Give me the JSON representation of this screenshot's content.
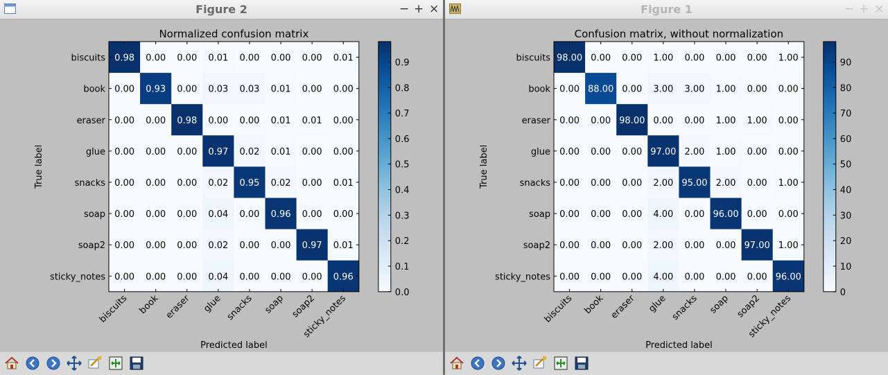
{
  "windows": [
    {
      "id": "L",
      "title": "Figure 2",
      "active": true,
      "window_icon": "window-app-icon",
      "controls": [
        "−",
        "+",
        "×"
      ],
      "toolbar": [
        "home-icon",
        "back-icon",
        "forward-icon",
        "pan-icon",
        "zoom-icon",
        "subplots-icon",
        "save-icon"
      ]
    },
    {
      "id": "R",
      "title": "Figure 1",
      "active": false,
      "window_icon": "matplotlib-icon",
      "controls": [
        "−",
        "+",
        "×"
      ],
      "toolbar": [
        "home-icon",
        "back-icon",
        "forward-icon",
        "pan-icon",
        "zoom-icon",
        "subplots-icon",
        "save-icon"
      ]
    }
  ],
  "chart_data": [
    {
      "type": "heatmap",
      "title": "Normalized confusion matrix",
      "xlabel": "Predicted label",
      "ylabel": "True label",
      "x_categories": [
        "biscuits",
        "book",
        "eraser",
        "glue",
        "snacks",
        "soap",
        "soap2",
        "sticky_notes"
      ],
      "y_categories": [
        "biscuits",
        "book",
        "eraser",
        "glue",
        "snacks",
        "soap",
        "soap2",
        "sticky_notes"
      ],
      "values": [
        [
          0.98,
          0.0,
          0.0,
          0.01,
          0.0,
          0.0,
          0.0,
          0.01
        ],
        [
          0.0,
          0.93,
          0.0,
          0.03,
          0.03,
          0.01,
          0.0,
          0.0
        ],
        [
          0.0,
          0.0,
          0.98,
          0.0,
          0.0,
          0.01,
          0.01,
          0.0
        ],
        [
          0.0,
          0.0,
          0.0,
          0.97,
          0.02,
          0.01,
          0.0,
          0.0
        ],
        [
          0.0,
          0.0,
          0.0,
          0.02,
          0.95,
          0.02,
          0.0,
          0.01
        ],
        [
          0.0,
          0.0,
          0.0,
          0.04,
          0.0,
          0.96,
          0.0,
          0.0
        ],
        [
          0.0,
          0.0,
          0.0,
          0.02,
          0.0,
          0.0,
          0.97,
          0.01
        ],
        [
          0.0,
          0.0,
          0.0,
          0.04,
          0.0,
          0.0,
          0.0,
          0.96
        ]
      ],
      "cell_format_decimals": 2,
      "colorbar": {
        "colormap": "Blues",
        "min": 0.0,
        "max": 0.98,
        "ticks": [
          "0.0",
          "0.1",
          "0.2",
          "0.3",
          "0.4",
          "0.5",
          "0.6",
          "0.7",
          "0.8",
          "0.9"
        ]
      },
      "grid": false
    },
    {
      "type": "heatmap",
      "title": "Confusion matrix, without normalization",
      "xlabel": "Predicted label",
      "ylabel": "True label",
      "x_categories": [
        "biscuits",
        "book",
        "eraser",
        "glue",
        "snacks",
        "soap",
        "soap2",
        "sticky_notes"
      ],
      "y_categories": [
        "biscuits",
        "book",
        "eraser",
        "glue",
        "snacks",
        "soap",
        "soap2",
        "sticky_notes"
      ],
      "values": [
        [
          98,
          0,
          0,
          1,
          0,
          0,
          0,
          1
        ],
        [
          0,
          88,
          0,
          3,
          3,
          1,
          0,
          0
        ],
        [
          0,
          0,
          98,
          0,
          0,
          1,
          1,
          0
        ],
        [
          0,
          0,
          0,
          97,
          2,
          1,
          0,
          0
        ],
        [
          0,
          0,
          0,
          2,
          95,
          2,
          0,
          1
        ],
        [
          0,
          0,
          0,
          4,
          0,
          96,
          0,
          0
        ],
        [
          0,
          0,
          0,
          2,
          0,
          0,
          97,
          1
        ],
        [
          0,
          0,
          0,
          4,
          0,
          0,
          0,
          96
        ]
      ],
      "cell_format_decimals": 2,
      "colorbar": {
        "colormap": "Blues",
        "min": 0,
        "max": 98,
        "ticks": [
          "0",
          "10",
          "20",
          "30",
          "40",
          "50",
          "60",
          "70",
          "80",
          "90"
        ]
      },
      "grid": false
    }
  ]
}
